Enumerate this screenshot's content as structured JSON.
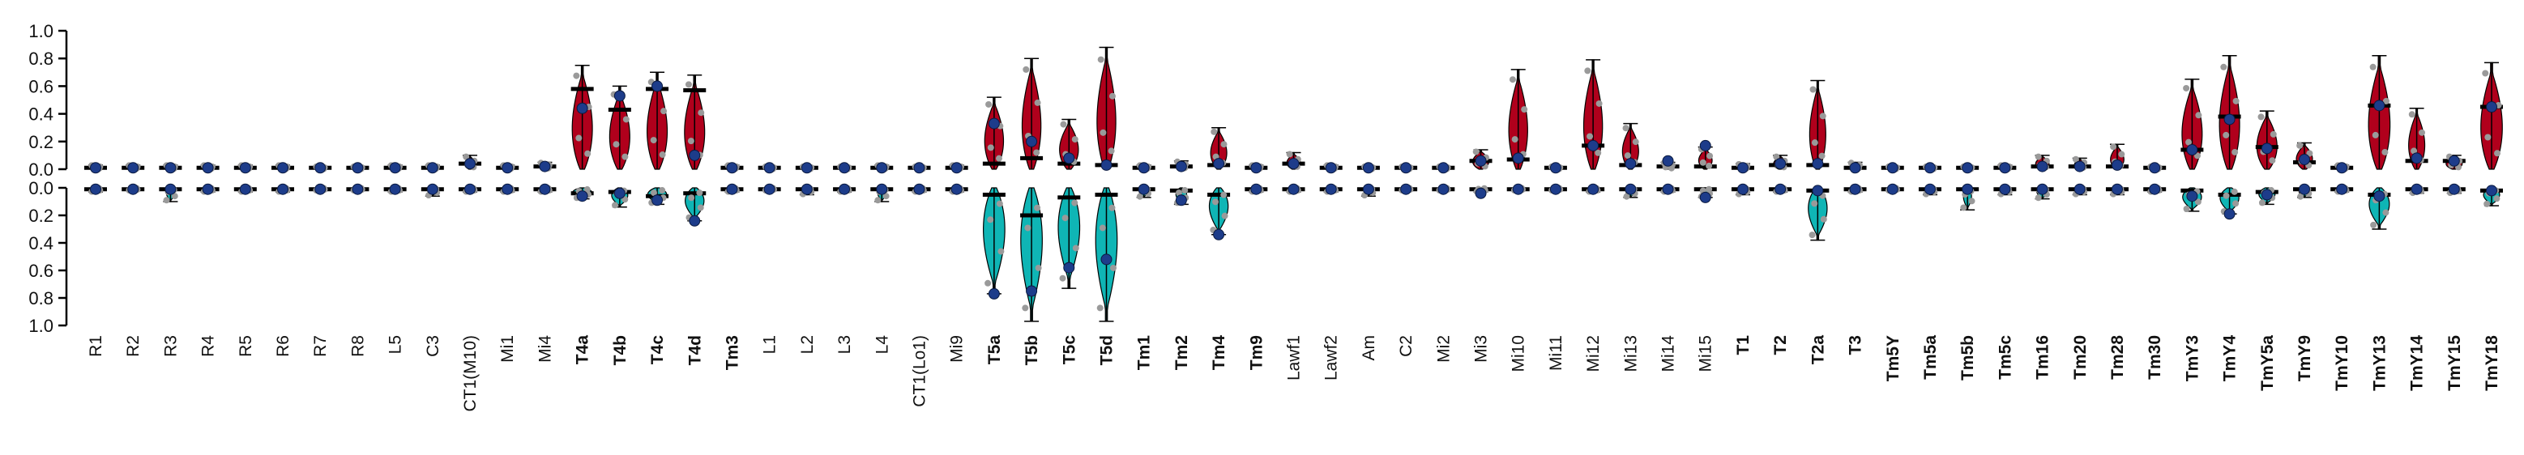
{
  "chart_data": {
    "type": "violin",
    "categories": [
      "R1",
      "R2",
      "R3",
      "R4",
      "R5",
      "R6",
      "R7",
      "R8",
      "L5",
      "C3",
      "CT1(M10)",
      "Mi1",
      "Mi4",
      "T4a",
      "T4b",
      "T4c",
      "T4d",
      "Tm3",
      "L1",
      "L2",
      "L3",
      "L4",
      "CT1(Lo1)",
      "Mi9",
      "T5a",
      "T5b",
      "T5c",
      "T5d",
      "Tm1",
      "Tm2",
      "Tm4",
      "Tm9",
      "Lawf1",
      "Lawf2",
      "Am",
      "C2",
      "Mi2",
      "Mi3",
      "Mi10",
      "Mi11",
      "Mi12",
      "Mi13",
      "Mi14",
      "Mi15",
      "T1",
      "T2",
      "T2a",
      "T3",
      "Tm5Y",
      "Tm5a",
      "Tm5b",
      "Tm5c",
      "Tm16",
      "Tm20",
      "Tm28",
      "Tm30",
      "TmY3",
      "TmY4",
      "TmY5a",
      "TmY9",
      "TmY10",
      "TmY13",
      "TmY14",
      "TmY15",
      "TmY18"
    ],
    "bold": [
      false,
      false,
      false,
      false,
      false,
      false,
      false,
      false,
      false,
      false,
      false,
      false,
      false,
      true,
      true,
      true,
      true,
      true,
      false,
      false,
      false,
      false,
      false,
      false,
      true,
      true,
      true,
      true,
      true,
      true,
      true,
      true,
      false,
      false,
      false,
      false,
      false,
      false,
      false,
      false,
      false,
      false,
      false,
      false,
      true,
      true,
      true,
      true,
      true,
      true,
      true,
      true,
      true,
      true,
      true,
      true,
      true,
      true,
      true,
      true,
      true,
      true,
      true,
      true,
      true
    ],
    "label_color": [
      "",
      "",
      "",
      "",
      "",
      "",
      "",
      "",
      "",
      "",
      "",
      "",
      "",
      "#b0001c",
      "#b0001c",
      "#b0001c",
      "#b0001c",
      "",
      "",
      "",
      "",
      "",
      "",
      "",
      "#0fb5b5",
      "#0fb5b5",
      "#0fb5b5",
      "#0fb5b5",
      "",
      "",
      "",
      "",
      "",
      "",
      "",
      "",
      "",
      "",
      "",
      "",
      "",
      "",
      "",
      "",
      "",
      "",
      "",
      "",
      "",
      "",
      "",
      "",
      "",
      "",
      "",
      "",
      "",
      "",
      "",
      "",
      "",
      "",
      "",
      "",
      ""
    ],
    "top_axis": {
      "ticks": [
        "1.0",
        "0.8",
        "0.6",
        "0.4",
        "0.2",
        "0.0"
      ],
      "range": [
        0,
        1.0
      ]
    },
    "bottom_axis": {
      "ticks": [
        "0.0",
        "0.2",
        "0.4",
        "0.6",
        "0.8",
        "1.0"
      ],
      "range": [
        0,
        1.0
      ]
    },
    "series": [
      {
        "name": "",
        "color": "#b0001c",
        "max": [
          0.03,
          0.03,
          0.03,
          0.03,
          0.03,
          0.03,
          0.02,
          0.02,
          0.03,
          0.03,
          0.1,
          0.03,
          0.05,
          0.75,
          0.6,
          0.7,
          0.68,
          0.03,
          0.02,
          0.02,
          0.02,
          0.03,
          0.02,
          0.03,
          0.52,
          0.8,
          0.36,
          0.88,
          0.03,
          0.06,
          0.3,
          0.03,
          0.12,
          0.03,
          0.02,
          0.02,
          0.02,
          0.14,
          0.72,
          0.02,
          0.79,
          0.33,
          0.05,
          0.16,
          0.04,
          0.1,
          0.64,
          0.05,
          0.02,
          0.02,
          0.02,
          0.03,
          0.1,
          0.08,
          0.18,
          0.02,
          0.65,
          0.82,
          0.42,
          0.19,
          0.03,
          0.82,
          0.44,
          0.1,
          0.77
        ],
        "median": [
          0.01,
          0.01,
          0.01,
          0.01,
          0.01,
          0.01,
          0.01,
          0.01,
          0.01,
          0.01,
          0.04,
          0.01,
          0.02,
          0.58,
          0.43,
          0.58,
          0.57,
          0.01,
          0.01,
          0.01,
          0.01,
          0.01,
          0.01,
          0.01,
          0.04,
          0.08,
          0.04,
          0.03,
          0.01,
          0.02,
          0.03,
          0.01,
          0.04,
          0.01,
          0.01,
          0.01,
          0.01,
          0.06,
          0.07,
          0.01,
          0.17,
          0.03,
          0.02,
          0.02,
          0.01,
          0.03,
          0.03,
          0.01,
          0.01,
          0.01,
          0.01,
          0.01,
          0.02,
          0.02,
          0.02,
          0.01,
          0.14,
          0.38,
          0.16,
          0.05,
          0.01,
          0.46,
          0.06,
          0.06,
          0.45
        ],
        "mean": [
          0.01,
          0.01,
          0.01,
          0.01,
          0.01,
          0.01,
          0.01,
          0.01,
          0.01,
          0.01,
          0.04,
          0.01,
          0.02,
          0.44,
          0.53,
          0.6,
          0.1,
          0.01,
          0.01,
          0.01,
          0.01,
          0.01,
          0.01,
          0.01,
          0.33,
          0.2,
          0.08,
          0.03,
          0.01,
          0.02,
          0.04,
          0.01,
          0.04,
          0.01,
          0.01,
          0.01,
          0.01,
          0.06,
          0.08,
          0.01,
          0.17,
          0.04,
          0.06,
          0.17,
          0.01,
          0.04,
          0.04,
          0.01,
          0.01,
          0.01,
          0.01,
          0.01,
          0.02,
          0.02,
          0.03,
          0.01,
          0.14,
          0.36,
          0.15,
          0.07,
          0.01,
          0.46,
          0.08,
          0.06,
          0.45
        ],
        "whisker_hi": [
          0.03,
          0.03,
          0.03,
          0.03,
          0.03,
          0.03,
          0.02,
          0.02,
          0.03,
          0.03,
          0.1,
          0.03,
          0.05,
          0.75,
          0.6,
          0.7,
          0.68,
          0.03,
          0.02,
          0.02,
          0.02,
          0.03,
          0.02,
          0.03,
          0.52,
          0.8,
          0.36,
          0.88,
          0.03,
          0.06,
          0.3,
          0.03,
          0.12,
          0.03,
          0.02,
          0.02,
          0.02,
          0.14,
          0.72,
          0.02,
          0.79,
          0.33,
          0.05,
          0.16,
          0.04,
          0.1,
          0.64,
          0.05,
          0.02,
          0.02,
          0.02,
          0.03,
          0.1,
          0.08,
          0.18,
          0.02,
          0.65,
          0.82,
          0.42,
          0.19,
          0.03,
          0.82,
          0.44,
          0.1,
          0.77
        ],
        "width": [
          0.35,
          0.35,
          0.35,
          0.35,
          0.35,
          0.35,
          0.3,
          0.3,
          0.35,
          0.35,
          0.4,
          0.35,
          0.35,
          0.75,
          0.75,
          0.75,
          0.75,
          0.35,
          0.3,
          0.3,
          0.3,
          0.35,
          0.3,
          0.35,
          0.7,
          0.7,
          0.7,
          0.7,
          0.35,
          0.4,
          0.6,
          0.35,
          0.5,
          0.35,
          0.3,
          0.3,
          0.3,
          0.6,
          0.7,
          0.3,
          0.7,
          0.6,
          0.4,
          0.5,
          0.35,
          0.5,
          0.6,
          0.35,
          0.3,
          0.3,
          0.3,
          0.35,
          0.5,
          0.4,
          0.5,
          0.3,
          0.75,
          0.75,
          0.75,
          0.6,
          0.35,
          0.8,
          0.6,
          0.6,
          0.8
        ]
      },
      {
        "name": "",
        "color": "#0fb5b5",
        "max": [
          0.03,
          0.02,
          0.1,
          0.03,
          0.03,
          0.03,
          0.02,
          0.02,
          0.03,
          0.06,
          0.03,
          0.03,
          0.03,
          0.08,
          0.14,
          0.12,
          0.24,
          0.03,
          0.02,
          0.05,
          0.03,
          0.1,
          0.03,
          0.03,
          0.77,
          0.97,
          0.73,
          0.97,
          0.07,
          0.12,
          0.34,
          0.03,
          0.03,
          0.03,
          0.06,
          0.02,
          0.02,
          0.03,
          0.02,
          0.02,
          0.03,
          0.07,
          0.03,
          0.07,
          0.05,
          0.03,
          0.38,
          0.03,
          0.02,
          0.05,
          0.16,
          0.05,
          0.08,
          0.05,
          0.05,
          0.03,
          0.17,
          0.19,
          0.12,
          0.07,
          0.03,
          0.3,
          0.04,
          0.04,
          0.13
        ],
        "median": [
          0.01,
          0.01,
          0.01,
          0.01,
          0.01,
          0.01,
          0.01,
          0.01,
          0.01,
          0.01,
          0.01,
          0.01,
          0.01,
          0.04,
          0.03,
          0.06,
          0.04,
          0.01,
          0.01,
          0.01,
          0.01,
          0.01,
          0.01,
          0.01,
          0.05,
          0.2,
          0.07,
          0.05,
          0.01,
          0.02,
          0.05,
          0.01,
          0.01,
          0.01,
          0.01,
          0.01,
          0.01,
          0.01,
          0.01,
          0.01,
          0.01,
          0.01,
          0.01,
          0.01,
          0.01,
          0.01,
          0.02,
          0.01,
          0.01,
          0.01,
          0.01,
          0.01,
          0.01,
          0.01,
          0.01,
          0.01,
          0.02,
          0.05,
          0.03,
          0.01,
          0.01,
          0.05,
          0.01,
          0.01,
          0.02
        ],
        "mean": [
          0.01,
          0.01,
          0.01,
          0.01,
          0.01,
          0.01,
          0.01,
          0.01,
          0.01,
          0.01,
          0.01,
          0.01,
          0.01,
          0.06,
          0.04,
          0.09,
          0.24,
          0.01,
          0.01,
          0.01,
          0.01,
          0.01,
          0.01,
          0.01,
          0.77,
          0.75,
          0.58,
          0.52,
          0.01,
          0.09,
          0.34,
          0.01,
          0.01,
          0.01,
          0.01,
          0.01,
          0.01,
          0.04,
          0.01,
          0.01,
          0.01,
          0.01,
          0.01,
          0.07,
          0.01,
          0.01,
          0.02,
          0.01,
          0.01,
          0.01,
          0.01,
          0.01,
          0.01,
          0.01,
          0.01,
          0.01,
          0.06,
          0.19,
          0.05,
          0.01,
          0.01,
          0.06,
          0.01,
          0.01,
          0.02
        ],
        "width": [
          0.35,
          0.35,
          0.3,
          0.35,
          0.35,
          0.35,
          0.3,
          0.3,
          0.35,
          0.35,
          0.35,
          0.35,
          0.35,
          0.7,
          0.6,
          0.7,
          0.7,
          0.35,
          0.3,
          0.3,
          0.3,
          0.3,
          0.3,
          0.35,
          0.8,
          0.8,
          0.8,
          0.8,
          0.35,
          0.4,
          0.7,
          0.35,
          0.3,
          0.3,
          0.3,
          0.3,
          0.3,
          0.35,
          0.3,
          0.3,
          0.3,
          0.35,
          0.3,
          0.35,
          0.35,
          0.35,
          0.7,
          0.3,
          0.3,
          0.3,
          0.3,
          0.3,
          0.4,
          0.35,
          0.35,
          0.3,
          0.7,
          0.7,
          0.6,
          0.4,
          0.35,
          0.75,
          0.5,
          0.4,
          0.6
        ]
      }
    ]
  }
}
